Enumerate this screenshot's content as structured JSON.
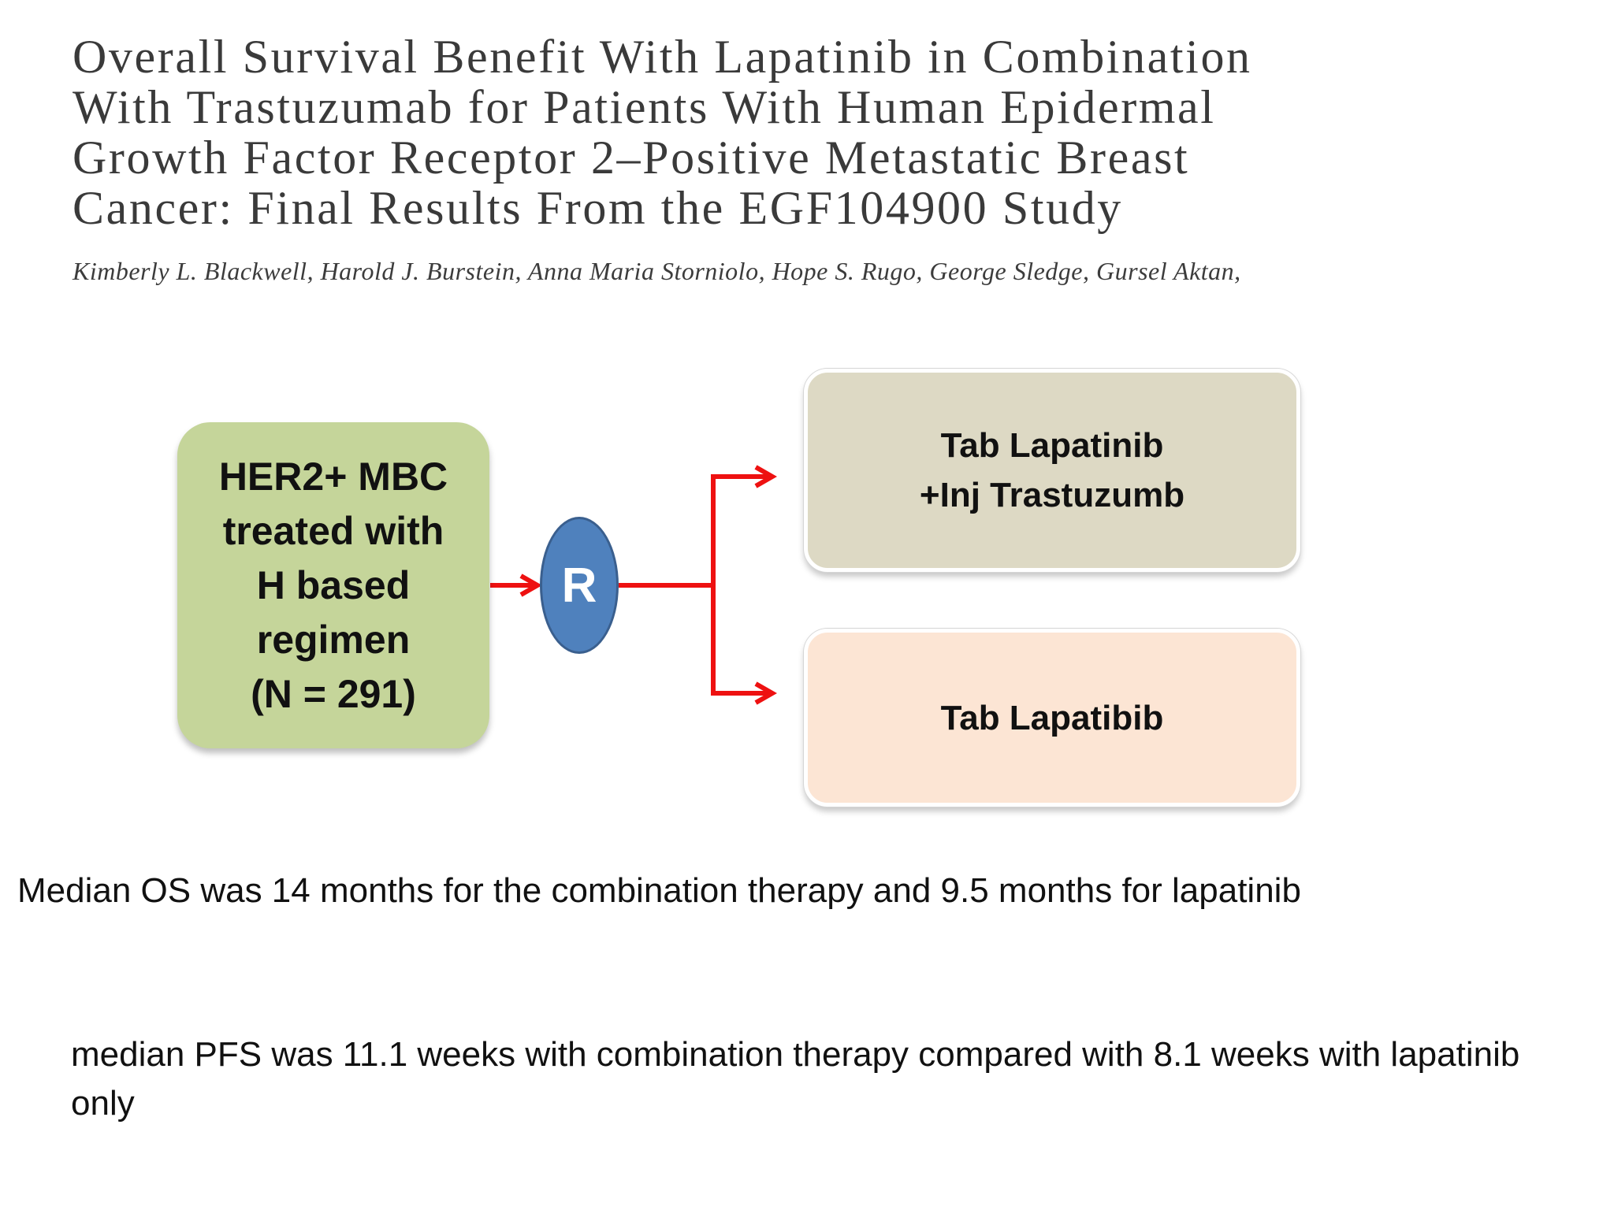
{
  "title_lines": [
    "Overall Survival Benefit With Lapatinib in Combination",
    "With Trastuzumab for Patients With Human Epidermal",
    "Growth Factor Receptor 2–Positive Metastatic Breast",
    "Cancer: Final Results From the EGF104900 Study"
  ],
  "authors": "Kimberly L. Blackwell, Harold J. Burstein, Anna Maria Storniolo, Hope S. Rugo, George Sledge, Gursel Aktan,",
  "diagram": {
    "population_lines": [
      "HER2+ MBC",
      "treated with",
      "H based",
      "regimen",
      "(N = 291)"
    ],
    "randomization": "R",
    "arm_a_lines": [
      "Tab Lapatinib",
      "+Inj Trastuzumb"
    ],
    "arm_b": "Tab Lapatibib",
    "colors": {
      "population": "#c5d59a",
      "randomization": "#4f81bd",
      "arm_a": "#ddd9c4",
      "arm_b": "#fce5d4",
      "arrow": "#ee1111"
    }
  },
  "notes": {
    "os": "Median OS was 14 months for the combination therapy and 9.5 months for lapatinib",
    "pfs": "median PFS was 11.1 weeks with combination therapy compared with 8.1 weeks with lapatinib only"
  }
}
